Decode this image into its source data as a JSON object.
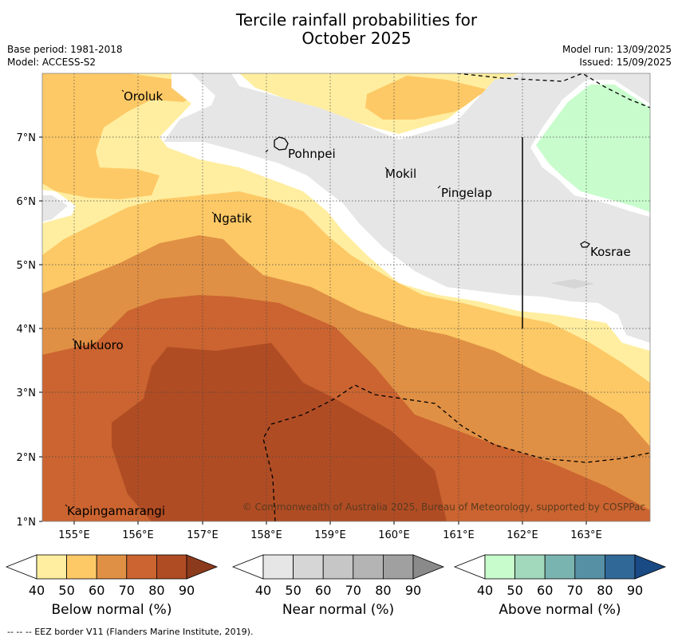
{
  "title_line1": "Tercile rainfall probabilities for",
  "title_line2": "October 2025",
  "meta_left": [
    "Base period: 1981-2018",
    "Model: ACCESS-S2"
  ],
  "meta_right": [
    "Model run: 13/09/2025",
    "Issued: 15/09/2025"
  ],
  "map": {
    "x_ticks": [
      "155°E",
      "156°E",
      "157°E",
      "158°E",
      "159°E",
      "160°E",
      "161°E",
      "162°E",
      "163°E"
    ],
    "y_ticks": [
      "7°N",
      "6°N",
      "5°N",
      "4°N",
      "3°N",
      "2°N",
      "1°N"
    ],
    "places": [
      "Oroluk",
      "Pohnpei",
      "Mokil",
      "Pingelap",
      "Ngatik",
      "Kosrae",
      "Nukuoro",
      "Kapingamarangi"
    ],
    "copyright": "© Commonwealth of Australia 2025, Bureau of Meteorology, supported by COSPPac"
  },
  "colorbars": [
    {
      "label": "Below normal (%)",
      "ticks": [
        "40",
        "50",
        "60",
        "70",
        "80",
        "90"
      ],
      "colors": [
        "#ffeea0",
        "#fdc966",
        "#e09044",
        "#cb6430",
        "#b04c24",
        "#8c3a1c"
      ]
    },
    {
      "label": "Near normal (%)",
      "ticks": [
        "40",
        "50",
        "60",
        "70",
        "80",
        "90"
      ],
      "colors": [
        "#e6e6e6",
        "#d6d6d6",
        "#c6c6c6",
        "#b4b4b4",
        "#a0a0a0",
        "#8a8a8a"
      ]
    },
    {
      "label": "Above normal (%)",
      "ticks": [
        "40",
        "50",
        "60",
        "70",
        "80",
        "90"
      ],
      "colors": [
        "#c8fccc",
        "#a2d8bc",
        "#7ab4b0",
        "#5690a4",
        "#306898",
        "#1a4a84"
      ]
    }
  ],
  "footnote": "-- -- -- EEZ border V11 (Flanders Marine Institute, 2019)."
}
